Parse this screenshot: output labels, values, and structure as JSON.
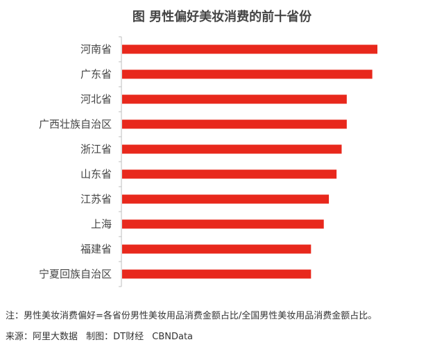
{
  "title": "图 男性偏好美妆消费的前十省份",
  "note": "注：男性美妆消费偏好=各省份男性美妆用品消费金额占比/全国男性美妆用品消费金额占比。",
  "source": {
    "origin": "来源：阿里大数据",
    "made_by": "制图：DT财经",
    "brand": "CBNData"
  },
  "colors": {
    "bar": "#e8281c",
    "axis": "#bfbfbf",
    "label": "#444444"
  },
  "chart_data": {
    "type": "bar",
    "orientation": "horizontal",
    "title": "图 男性偏好美妆消费的前十省份",
    "categories": [
      "河南省",
      "广东省",
      "河北省",
      "广西壮族自治区",
      "浙江省",
      "山东省",
      "江苏省",
      "上海",
      "福建省",
      "宁夏回族自治区"
    ],
    "values": [
      1.0,
      0.98,
      0.88,
      0.88,
      0.86,
      0.84,
      0.81,
      0.79,
      0.74,
      0.74
    ],
    "value_axis_visible": false,
    "grid": false,
    "legend": "none",
    "xlabel": "",
    "ylabel": ""
  }
}
